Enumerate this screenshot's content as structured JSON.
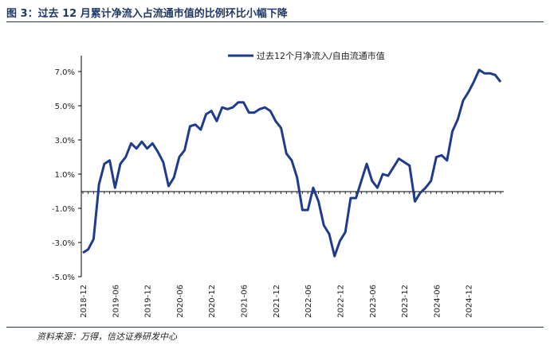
{
  "header": {
    "title": "图 3：过去 12 月累计净流入占流通市值的比例环比小幅下降"
  },
  "footer": {
    "source": "资料来源：万得，信达证券研发中心"
  },
  "colors": {
    "series": "#1f3b8c",
    "title": "#1f3864",
    "axis": "#000000"
  },
  "chart_data": {
    "type": "line",
    "title": "",
    "xlabel": "",
    "ylabel": "",
    "ylim": [
      -5.0,
      8.0
    ],
    "yticks": [
      7.0,
      5.0,
      3.0,
      1.0,
      -1.0,
      -3.0,
      -5.0
    ],
    "ytick_labels": [
      "7.0%",
      "5.0%",
      "3.0%",
      "1.0%",
      "-1.0%",
      "-3.0%",
      "-5.0%"
    ],
    "xtick_labels": [
      "2018-12",
      "2019-06",
      "2019-12",
      "2020-06",
      "2020-12",
      "2021-06",
      "2021-12",
      "2022-06",
      "2022-12",
      "2023-06",
      "2023-12",
      "2024-06",
      "2024-12"
    ],
    "legend_position": "top-center",
    "series": [
      {
        "name": "过去12个月净流入/自由流通市值",
        "values": [
          {
            "x": "2018-12",
            "y": -3.6
          },
          {
            "x": "2019-01",
            "y": -3.4
          },
          {
            "x": "2019-02",
            "y": -2.8
          },
          {
            "x": "2019-03",
            "y": 0.4
          },
          {
            "x": "2019-04",
            "y": 1.6
          },
          {
            "x": "2019-05",
            "y": 1.8
          },
          {
            "x": "2019-06",
            "y": 0.2
          },
          {
            "x": "2019-07",
            "y": 1.6
          },
          {
            "x": "2019-08",
            "y": 2.0
          },
          {
            "x": "2019-09",
            "y": 2.8
          },
          {
            "x": "2019-10",
            "y": 2.5
          },
          {
            "x": "2019-11",
            "y": 2.9
          },
          {
            "x": "2019-12",
            "y": 2.5
          },
          {
            "x": "2020-01",
            "y": 2.8
          },
          {
            "x": "2020-02",
            "y": 2.3
          },
          {
            "x": "2020-03",
            "y": 1.7
          },
          {
            "x": "2020-04",
            "y": 0.3
          },
          {
            "x": "2020-05",
            "y": 0.8
          },
          {
            "x": "2020-06",
            "y": 2.0
          },
          {
            "x": "2020-07",
            "y": 2.4
          },
          {
            "x": "2020-08",
            "y": 3.8
          },
          {
            "x": "2020-09",
            "y": 3.9
          },
          {
            "x": "2020-10",
            "y": 3.6
          },
          {
            "x": "2020-11",
            "y": 4.5
          },
          {
            "x": "2020-12",
            "y": 4.7
          },
          {
            "x": "2021-01",
            "y": 4.1
          },
          {
            "x": "2021-02",
            "y": 4.9
          },
          {
            "x": "2021-03",
            "y": 4.8
          },
          {
            "x": "2021-04",
            "y": 4.9
          },
          {
            "x": "2021-05",
            "y": 5.2
          },
          {
            "x": "2021-06",
            "y": 5.2
          },
          {
            "x": "2021-07",
            "y": 4.6
          },
          {
            "x": "2021-08",
            "y": 4.6
          },
          {
            "x": "2021-09",
            "y": 4.8
          },
          {
            "x": "2021-10",
            "y": 4.9
          },
          {
            "x": "2021-11",
            "y": 4.7
          },
          {
            "x": "2021-12",
            "y": 4.1
          },
          {
            "x": "2022-01",
            "y": 3.7
          },
          {
            "x": "2022-02",
            "y": 2.2
          },
          {
            "x": "2022-03",
            "y": 1.8
          },
          {
            "x": "2022-04",
            "y": 0.8
          },
          {
            "x": "2022-05",
            "y": -1.1
          },
          {
            "x": "2022-06",
            "y": -1.1
          },
          {
            "x": "2022-07",
            "y": 0.2
          },
          {
            "x": "2022-08",
            "y": -0.6
          },
          {
            "x": "2022-09",
            "y": -2.0
          },
          {
            "x": "2022-10",
            "y": -2.5
          },
          {
            "x": "2022-11",
            "y": -3.8
          },
          {
            "x": "2022-12",
            "y": -2.9
          },
          {
            "x": "2023-01",
            "y": -2.4
          },
          {
            "x": "2023-02",
            "y": -0.4
          },
          {
            "x": "2023-03",
            "y": -0.4
          },
          {
            "x": "2023-04",
            "y": 0.6
          },
          {
            "x": "2023-05",
            "y": 1.6
          },
          {
            "x": "2023-06",
            "y": 0.6
          },
          {
            "x": "2023-07",
            "y": 0.2
          },
          {
            "x": "2023-08",
            "y": 1.0
          },
          {
            "x": "2023-09",
            "y": 0.9
          },
          {
            "x": "2023-10",
            "y": 1.4
          },
          {
            "x": "2023-11",
            "y": 1.9
          },
          {
            "x": "2023-12",
            "y": 1.7
          },
          {
            "x": "2024-01",
            "y": 1.5
          },
          {
            "x": "2024-02",
            "y": -0.6
          },
          {
            "x": "2024-03",
            "y": -0.1
          },
          {
            "x": "2024-04",
            "y": 0.2
          },
          {
            "x": "2024-05",
            "y": 0.6
          },
          {
            "x": "2024-06",
            "y": 2.0
          },
          {
            "x": "2024-07",
            "y": 2.1
          },
          {
            "x": "2024-08",
            "y": 1.8
          },
          {
            "x": "2024-09",
            "y": 3.5
          },
          {
            "x": "2024-10",
            "y": 4.2
          },
          {
            "x": "2024-11",
            "y": 5.3
          },
          {
            "x": "2024-12",
            "y": 5.8
          },
          {
            "x": "2025-01",
            "y": 6.4
          },
          {
            "x": "2025-02",
            "y": 7.1
          },
          {
            "x": "2025-03",
            "y": 6.9
          },
          {
            "x": "2025-04",
            "y": 6.9
          },
          {
            "x": "2025-05",
            "y": 6.8
          },
          {
            "x": "2025-06",
            "y": 6.4
          }
        ]
      }
    ]
  }
}
